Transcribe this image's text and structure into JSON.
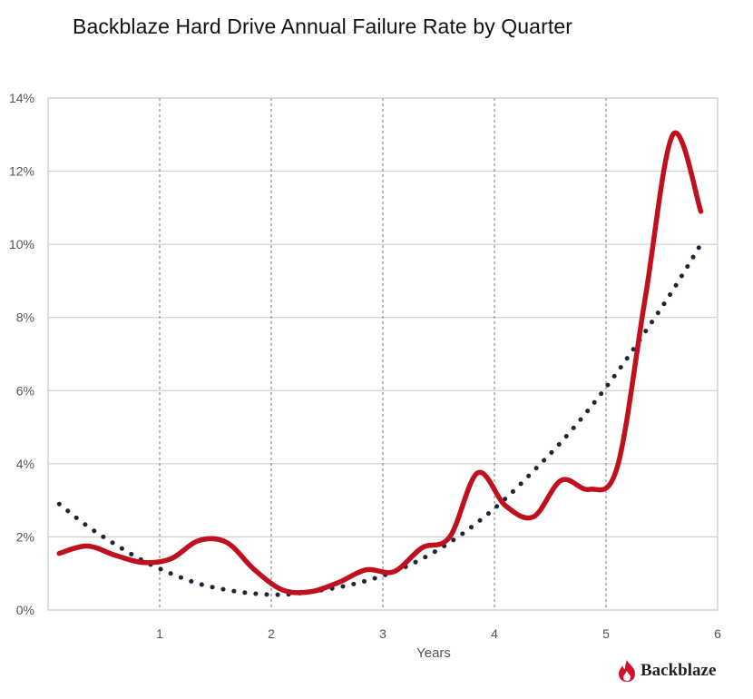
{
  "chart_data": {
    "type": "line",
    "title": "Backblaze Hard Drive Annual Failure Rate by Quarter",
    "xlabel": "Years",
    "ylabel": "",
    "xlim": [
      0,
      6
    ],
    "ylim": [
      0,
      14
    ],
    "x_ticks": [
      1,
      2,
      3,
      4,
      5,
      6
    ],
    "y_ticks": [
      0,
      2,
      4,
      6,
      8,
      10,
      12,
      14
    ],
    "y_tick_labels": [
      "0%",
      "2%",
      "4%",
      "6%",
      "8%",
      "10%",
      "12%",
      "14%"
    ],
    "grid": {
      "horizontal": "solid",
      "vertical": "dashed"
    },
    "series": [
      {
        "style": "solid",
        "color": "#c0101e",
        "x": [
          0.1,
          0.35,
          0.6,
          0.85,
          1.1,
          1.35,
          1.6,
          1.85,
          2.1,
          2.35,
          2.6,
          2.85,
          3.1,
          3.35,
          3.6,
          3.85,
          4.1,
          4.35,
          4.6,
          4.85,
          5.1,
          5.35,
          5.6,
          5.85
        ],
        "y": [
          1.55,
          1.75,
          1.5,
          1.3,
          1.4,
          1.9,
          1.85,
          1.1,
          0.55,
          0.5,
          0.75,
          1.1,
          1.05,
          1.7,
          2.0,
          3.75,
          2.85,
          2.55,
          3.55,
          3.3,
          3.9,
          8.5,
          13.0,
          10.9
        ]
      },
      {
        "style": "dotted",
        "color": "#1e2535",
        "name": "",
        "x": [
          0.1,
          0.35,
          0.6,
          0.85,
          1.1,
          1.35,
          1.6,
          1.85,
          2.1,
          2.35,
          2.6,
          2.85,
          3.1,
          3.35,
          3.6,
          3.85,
          4.1,
          4.35,
          4.6,
          4.85,
          5.1,
          5.35,
          5.6,
          5.85
        ],
        "y": [
          2.9,
          2.3,
          1.8,
          1.35,
          1.0,
          0.72,
          0.55,
          0.45,
          0.42,
          0.5,
          0.62,
          0.8,
          1.05,
          1.4,
          1.85,
          2.4,
          3.05,
          3.8,
          4.6,
          5.5,
          6.5,
          7.6,
          8.75,
          10.0
        ]
      }
    ]
  },
  "branding": {
    "logo_text": "Backblaze",
    "logo_icon": "flame-icon",
    "logo_color": "#d0102a"
  }
}
